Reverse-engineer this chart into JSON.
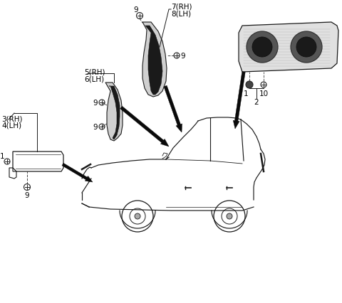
{
  "bg_color": "#ffffff",
  "line_color": "#1a1a1a",
  "labels": {
    "item1": "1",
    "item2": "2",
    "item3": "3(RH)",
    "item4": "4(LH)",
    "item5": "5(RH)",
    "item6": "6(LH)",
    "item7": "7(RH)",
    "item8": "8(LH)",
    "item9": "9",
    "item10": "10"
  },
  "font_size": 7.5
}
